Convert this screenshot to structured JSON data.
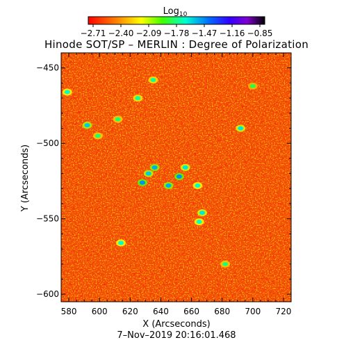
{
  "chart_data": {
    "type": "heatmap",
    "title": "Hinode SOT/SP – MERLIN : Degree of Polarization",
    "xlabel": "X (Arcseconds)",
    "ylabel": "Y (Arcseconds)",
    "footer": "7–Nov–2019 20:16:01.468",
    "colorbar": {
      "label_main": "Log",
      "label_sub": "10",
      "ticks": [
        "−2.71",
        "−2.40",
        "−2.09",
        "−1.78",
        "−1.47",
        "−1.16",
        "−0.85"
      ],
      "range": [
        -2.71,
        -0.85
      ]
    },
    "xlim": [
      575,
      725
    ],
    "ylim": [
      -605,
      -440
    ],
    "xticks": [
      {
        "value": 580,
        "label": "580"
      },
      {
        "value": 600,
        "label": "600"
      },
      {
        "value": 620,
        "label": "620"
      },
      {
        "value": 640,
        "label": "640"
      },
      {
        "value": 660,
        "label": "660"
      },
      {
        "value": 680,
        "label": "680"
      },
      {
        "value": 700,
        "label": "700"
      },
      {
        "value": 720,
        "label": "720"
      }
    ],
    "yticks": [
      {
        "value": -450,
        "label": "−450"
      },
      {
        "value": -500,
        "label": "−500"
      },
      {
        "value": -550,
        "label": "−550"
      },
      {
        "value": -600,
        "label": "−600"
      }
    ],
    "background_value": -2.6,
    "features": [
      {
        "x": 632,
        "y": -520,
        "value": -1.6
      },
      {
        "x": 628,
        "y": -526,
        "value": -1.5
      },
      {
        "x": 636,
        "y": -516,
        "value": -1.55
      },
      {
        "x": 645,
        "y": -528,
        "value": -1.55
      },
      {
        "x": 652,
        "y": -522,
        "value": -1.5
      },
      {
        "x": 656,
        "y": -516,
        "value": -1.65
      },
      {
        "x": 664,
        "y": -528,
        "value": -1.7
      },
      {
        "x": 667,
        "y": -546,
        "value": -1.65
      },
      {
        "x": 665,
        "y": -552,
        "value": -1.7
      },
      {
        "x": 592,
        "y": -488,
        "value": -1.6
      },
      {
        "x": 579,
        "y": -466,
        "value": -1.7
      },
      {
        "x": 692,
        "y": -490,
        "value": -1.65
      },
      {
        "x": 625,
        "y": -470,
        "value": -1.75
      },
      {
        "x": 635,
        "y": -458,
        "value": -1.75
      },
      {
        "x": 614,
        "y": -566,
        "value": -1.7
      },
      {
        "x": 599,
        "y": -495,
        "value": -1.8
      },
      {
        "x": 612,
        "y": -484,
        "value": -1.8
      },
      {
        "x": 700,
        "y": -462,
        "value": -1.85
      },
      {
        "x": 682,
        "y": -580,
        "value": -1.8
      }
    ]
  }
}
